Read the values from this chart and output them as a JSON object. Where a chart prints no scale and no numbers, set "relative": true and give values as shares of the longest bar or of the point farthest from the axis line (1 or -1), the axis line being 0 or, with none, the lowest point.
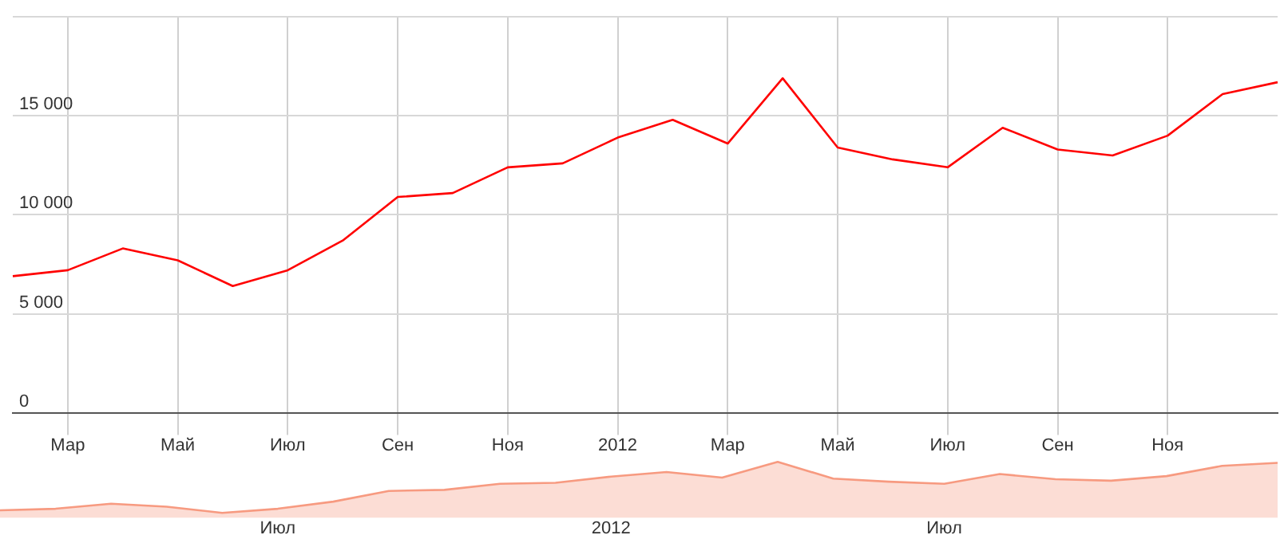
{
  "chart_data": [
    {
      "type": "line",
      "categories": [
        null,
        "Мар",
        null,
        "Май",
        null,
        "Июл",
        null,
        "Сен",
        null,
        "Ноя",
        null,
        "2012",
        null,
        "Мар",
        null,
        "Май",
        null,
        "Июл",
        null,
        "Сен",
        null,
        "Ноя",
        null,
        null
      ],
      "series": [
        {
          "color": "#ff0000",
          "values": [
            6900,
            7200,
            8300,
            7700,
            6400,
            7200,
            8700,
            10900,
            11100,
            12400,
            12600,
            13900,
            14800,
            13600,
            16900,
            13400,
            12800,
            12400,
            14400,
            13300,
            13000,
            14000,
            16100,
            16700
          ]
        }
      ],
      "ylim": [
        0,
        20000
      ],
      "yticks": [
        {
          "value": 0,
          "label": "0"
        },
        {
          "value": 5000,
          "label": "5 000"
        },
        {
          "value": 10000,
          "label": "10 000"
        },
        {
          "value": 15000,
          "label": "15 000"
        },
        {
          "value": 20000,
          "label": null
        }
      ],
      "grid": true,
      "marker": "none",
      "line_style": "solid",
      "legend": false
    },
    {
      "type": "area",
      "categories": [
        null,
        null,
        null,
        null,
        null,
        "Июл",
        null,
        null,
        null,
        null,
        null,
        "2012",
        null,
        null,
        null,
        null,
        null,
        "Июл",
        null,
        null,
        null,
        null,
        null,
        null
      ],
      "series": [
        {
          "color": "#f79a80",
          "values": [
            0.05,
            0.08,
            0.18,
            0.12,
            0,
            0.08,
            0.22,
            0.43,
            0.45,
            0.57,
            0.59,
            0.71,
            0.8,
            0.69,
            1,
            0.67,
            0.61,
            0.57,
            0.76,
            0.66,
            0.63,
            0.72,
            0.92,
            0.98
          ]
        }
      ],
      "relative": true,
      "tick_labels": "x",
      "grid": false,
      "marker": "none",
      "legend": false
    }
  ]
}
